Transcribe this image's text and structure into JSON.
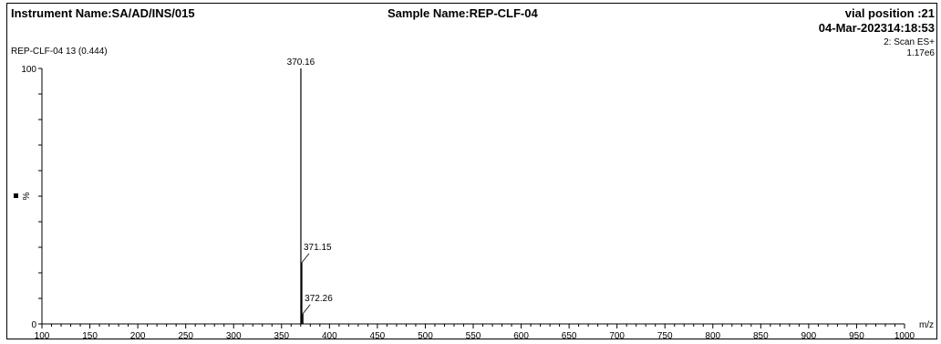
{
  "header": {
    "instrument": "Instrument Name:SA/AD/INS/015",
    "sample": "Sample Name:REP-CLF-04",
    "vial": "vial position :21",
    "datetime": "04-Mar-202314:18:53"
  },
  "scan_info": {
    "trace": "REP-CLF-04 13 (0.444)",
    "mode": "2: Scan ES+",
    "intensity": "1.17e6"
  },
  "chart_data": {
    "type": "bar",
    "xlabel": "m/z",
    "ylabel": "%",
    "xlim": [
      100,
      1000
    ],
    "ylim": [
      0,
      100
    ],
    "x_ticks": [
      100,
      150,
      200,
      250,
      300,
      350,
      400,
      450,
      500,
      550,
      600,
      650,
      700,
      750,
      800,
      850,
      900,
      950,
      1000
    ],
    "y_ticks": [
      0,
      100
    ],
    "peaks": [
      {
        "mz": 370.16,
        "intensity": 100,
        "label": "370.16"
      },
      {
        "mz": 371.15,
        "intensity": 24,
        "label": "371.15"
      },
      {
        "mz": 372.26,
        "intensity": 4,
        "label": "372.26"
      }
    ]
  }
}
